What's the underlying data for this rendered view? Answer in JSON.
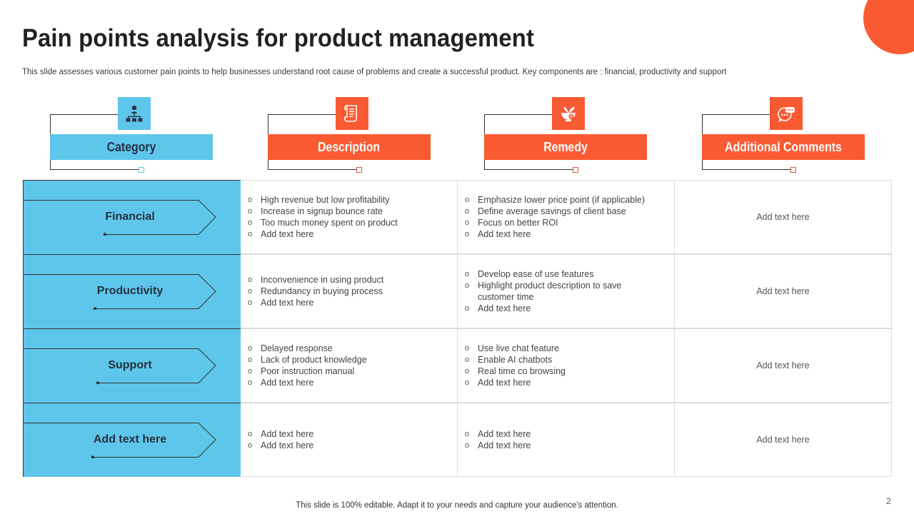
{
  "title": "Pain points analysis for product management",
  "subtitle": "This slide assesses various customer pain points to help businesses understand root cause of problems and create a successful product. Key components are : financial, productivity and support",
  "colors": {
    "accent_orange": "#fa5a32",
    "accent_blue": "#5ec6ea",
    "text_dark": "#222222"
  },
  "headers": [
    {
      "label": "Category",
      "icon": "org-chart-icon",
      "color": "#5ec6ea"
    },
    {
      "label": "Description",
      "icon": "document-scroll-icon",
      "color": "#fa5a32"
    },
    {
      "label": "Remedy",
      "icon": "remedy-herb-icon",
      "color": "#fa5a32"
    },
    {
      "label": "Additional Comments",
      "icon": "chat-bubbles-icon",
      "color": "#fa5a32"
    }
  ],
  "rows": [
    {
      "category": "Financial",
      "description": [
        "High revenue but low profitability",
        "Increase in signup bounce rate",
        "Too much money spent on product",
        "Add text here"
      ],
      "remedy": [
        "Emphasize lower price point (if applicable)",
        "Define average savings of client base",
        "Focus on better ROI",
        "Add text here"
      ],
      "comment": "Add text here"
    },
    {
      "category": "Productivity",
      "description": [
        "Inconvenience in using product",
        "Redundancy in buying process",
        "Add text here"
      ],
      "remedy": [
        "Develop ease of use features",
        "Highlight product description to save customer time",
        "Add text here"
      ],
      "comment": "Add text here"
    },
    {
      "category": "Support",
      "description": [
        "Delayed response",
        "Lack of product knowledge",
        "Poor instruction manual",
        "Add text here"
      ],
      "remedy": [
        "Use live chat feature",
        "Enable AI chatbots",
        "Real time co browsing",
        "Add text here"
      ],
      "comment": "Add text here"
    },
    {
      "category": "Add text here",
      "description": [
        "Add text here",
        "Add text here"
      ],
      "remedy": [
        "Add text here",
        "Add text here"
      ],
      "comment": "Add text here"
    }
  ],
  "footer": "This slide is 100% editable. Adapt it to your needs and capture your audience's attention.",
  "page_number": "2"
}
